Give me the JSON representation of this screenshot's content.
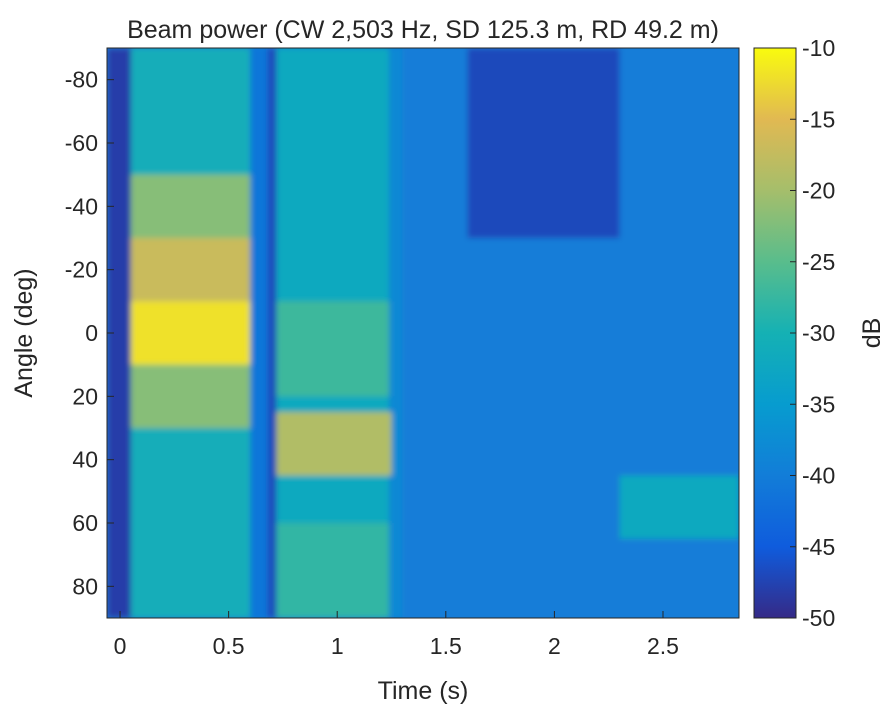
{
  "chart_data": {
    "type": "heatmap",
    "title": "Beam power (CW 2,503 Hz, SD 125.3 m, RD 49.2 m)",
    "xlabel": "Time (s)",
    "ylabel": "Angle (deg)",
    "xlim": [
      -0.06,
      2.85
    ],
    "ylim": [
      -90,
      90
    ],
    "y_direction": "reverse",
    "x_ticks": [
      0,
      0.5,
      1,
      1.5,
      2,
      2.5
    ],
    "x_tick_labels": [
      "0",
      "0.5",
      "1",
      "1.5",
      "2",
      "2.5"
    ],
    "y_ticks": [
      -80,
      -60,
      -40,
      -20,
      0,
      20,
      40,
      60,
      80
    ],
    "y_tick_labels": [
      "-80",
      "-60",
      "-40",
      "-20",
      "0",
      "20",
      "40",
      "60",
      "80"
    ],
    "colorbar": {
      "label": "dB",
      "limits": [
        -50,
        -10
      ],
      "ticks": [
        -10,
        -15,
        -20,
        -25,
        -30,
        -35,
        -40,
        -45,
        -50
      ],
      "tick_labels": [
        "-10",
        "-15",
        "-20",
        "-25",
        "-30",
        "-35",
        "-40",
        "-45",
        "-50"
      ],
      "colormap": "parula"
    },
    "regions": [
      {
        "t": [
          -0.06,
          2.85
        ],
        "a": [
          -90,
          90
        ],
        "db": -40
      },
      {
        "t": [
          -0.06,
          0.05
        ],
        "a": [
          -90,
          90
        ],
        "db": -48
      },
      {
        "t": [
          0.05,
          0.6
        ],
        "a": [
          -90,
          90
        ],
        "db": -31
      },
      {
        "t": [
          0.05,
          0.6
        ],
        "a": [
          -50,
          30
        ],
        "db": -22
      },
      {
        "t": [
          0.05,
          0.6
        ],
        "a": [
          -30,
          -10
        ],
        "db": -17
      },
      {
        "t": [
          0.05,
          0.6
        ],
        "a": [
          -10,
          10
        ],
        "db": -12
      },
      {
        "t": [
          0.6,
          0.68
        ],
        "a": [
          -90,
          90
        ],
        "db": -41
      },
      {
        "t": [
          0.68,
          0.72
        ],
        "a": [
          -90,
          90
        ],
        "db": -47
      },
      {
        "t": [
          0.72,
          1.24
        ],
        "a": [
          -90,
          90
        ],
        "db": -32
      },
      {
        "t": [
          0.72,
          1.24
        ],
        "a": [
          -10,
          20
        ],
        "db": -27
      },
      {
        "t": [
          0.72,
          1.24
        ],
        "a": [
          60,
          90
        ],
        "db": -28
      },
      {
        "t": [
          0.72,
          1.27
        ],
        "a": [
          25,
          45
        ],
        "db": -19
      },
      {
        "t": [
          1.25,
          1.3
        ],
        "a": [
          -90,
          90
        ],
        "db": -38
      },
      {
        "t": [
          1.6,
          2.3
        ],
        "a": [
          -90,
          -30
        ],
        "db": -47
      },
      {
        "t": [
          2.3,
          2.85
        ],
        "a": [
          45,
          65
        ],
        "db": -32
      }
    ]
  }
}
